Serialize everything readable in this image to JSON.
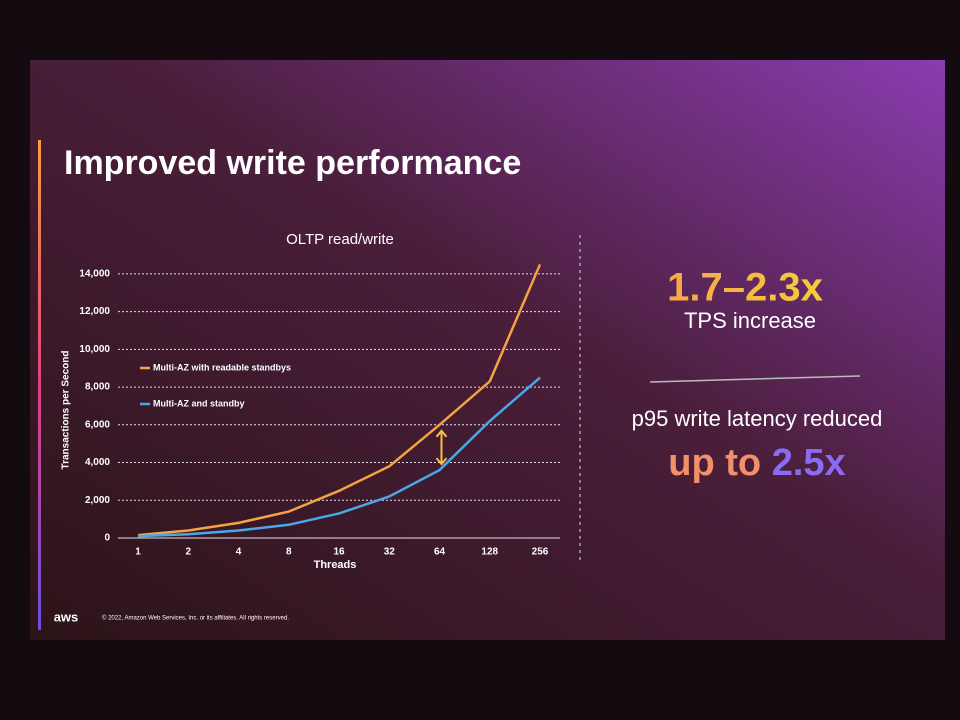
{
  "slide": {
    "title": "Improved write performance",
    "stat1": "1.7–2.3x",
    "stat1_caption": "TPS increase",
    "stat2_caption": "p95 write latency reduced",
    "stat2_prefix": "up to",
    "stat2": "2.5x",
    "logo": "aws",
    "footer": "© 2022, Amazon Web Services, Inc. or its affiliates. All rights reserved."
  },
  "chart_data": {
    "type": "line",
    "title": "OLTP read/write",
    "x_label": "Threads",
    "y_label": "Transactions per Second",
    "categories": [
      "1",
      "2",
      "4",
      "8",
      "16",
      "32",
      "64",
      "128",
      "256"
    ],
    "series": [
      {
        "name": "Multi-AZ with readable standbys",
        "color": "#f2a444",
        "values": [
          150,
          400,
          800,
          1400,
          2500,
          3800,
          6000,
          8300,
          14500
        ]
      },
      {
        "name": "Multi-AZ and standby",
        "color": "#4aa8e8",
        "values": [
          100,
          200,
          400,
          700,
          1300,
          2200,
          3600,
          6200,
          8500
        ]
      }
    ],
    "ylim": [
      0,
      15000
    ],
    "yticks": [
      0,
      {
        "value": 2000,
        "label": "2,000"
      },
      {
        "value": 4000,
        "label": "4,000"
      },
      {
        "value": 6000,
        "label": "6,000"
      },
      {
        "value": 8000,
        "label": "8,000"
      },
      {
        "value": 10000,
        "label": "10,000"
      },
      {
        "value": 12000,
        "label": "12,000"
      },
      {
        "value": 14000,
        "label": "14,000"
      }
    ],
    "grid": true
  }
}
